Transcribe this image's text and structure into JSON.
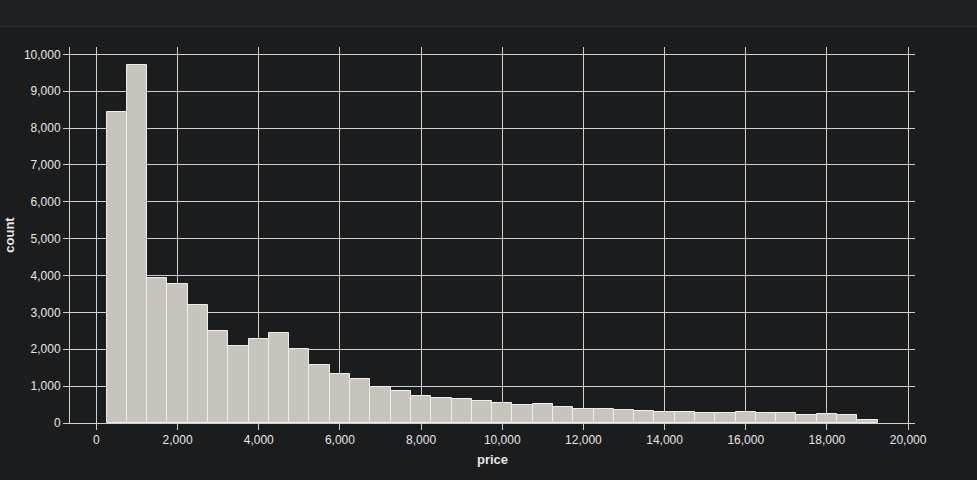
{
  "chart_data": {
    "type": "histogram",
    "x_label": "price",
    "y_label": "count",
    "bins": [
      250,
      750,
      1250,
      1750,
      2250,
      2750,
      3250,
      3750,
      4250,
      4750,
      5250,
      5750,
      6250,
      6750,
      7250,
      7750,
      8250,
      8750,
      9250,
      9750,
      10250,
      10750,
      11250,
      11750,
      12250,
      12750,
      13250,
      13750,
      14250,
      14750,
      15250,
      15750,
      16250,
      16750,
      17250,
      17750,
      18250,
      18750,
      19250
    ],
    "counts": [
      8450,
      9720,
      3940,
      3780,
      3200,
      2500,
      2100,
      2270,
      2440,
      2020,
      1560,
      1320,
      1200,
      980,
      880,
      720,
      670,
      660,
      590,
      530,
      500,
      510,
      430,
      390,
      380,
      360,
      320,
      310,
      300,
      280,
      270,
      290,
      260,
      260,
      220,
      240,
      210,
      70
    ],
    "color": "#c8c4be",
    "xlim": [
      -650,
      20170
    ],
    "xticks": [
      0,
      {
        "value": 2000,
        "label": "2,000"
      },
      {
        "value": 4000,
        "label": "4,000"
      },
      {
        "value": 6000,
        "label": "6,000"
      },
      {
        "value": 8000,
        "label": "8,000"
      },
      {
        "value": 10000,
        "label": "10,000"
      },
      {
        "value": 12000,
        "label": "12,000"
      },
      {
        "value": 14000,
        "label": "14,000"
      },
      {
        "value": 16000,
        "label": "16,000"
      },
      {
        "value": 18000,
        "label": "18,000"
      },
      {
        "value": 20000,
        "label": "20,000"
      }
    ],
    "ylim": [
      0,
      10200
    ],
    "yticks": [
      0,
      {
        "value": 1000,
        "label": "1,000"
      },
      {
        "value": 2000,
        "label": "2,000"
      },
      {
        "value": 3000,
        "label": "3,000"
      },
      {
        "value": 4000,
        "label": "4,000"
      },
      {
        "value": 5000,
        "label": "5,000"
      },
      {
        "value": 6000,
        "label": "6,000"
      },
      {
        "value": 7000,
        "label": "7,000"
      },
      {
        "value": 8000,
        "label": "8,000"
      },
      {
        "value": 9000,
        "label": "9,000"
      },
      {
        "value": 10000,
        "label": "10,000"
      }
    ],
    "grid": true
  }
}
